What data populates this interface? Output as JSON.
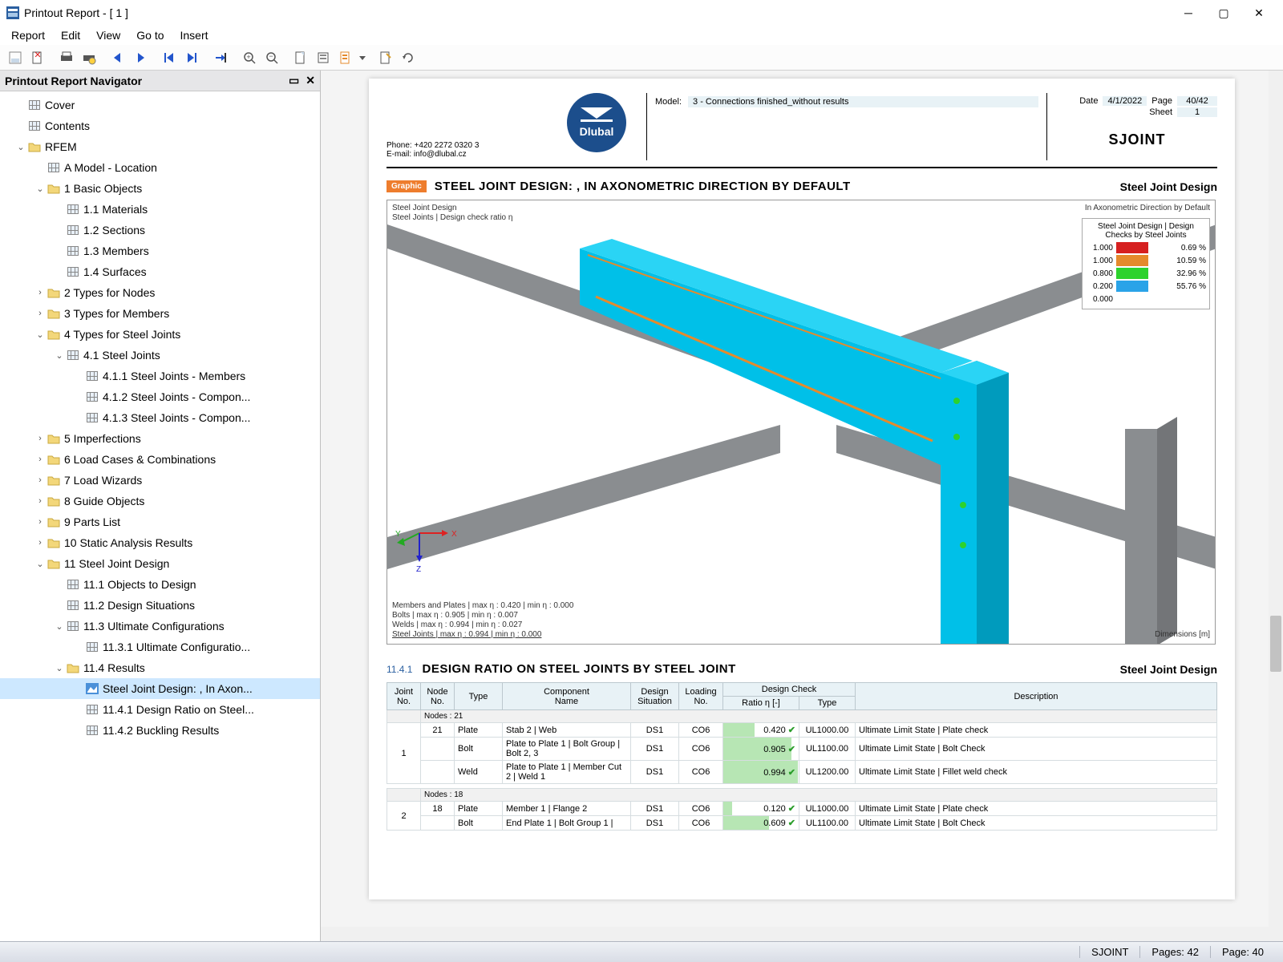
{
  "window": {
    "title": "Printout Report - [ 1 ]"
  },
  "menu": [
    "Report",
    "Edit",
    "View",
    "Go to",
    "Insert"
  ],
  "navigator": {
    "title": "Printout Report Navigator"
  },
  "tree": [
    {
      "d": 0,
      "t": null,
      "i": "grid",
      "l": "Cover"
    },
    {
      "d": 0,
      "t": null,
      "i": "grid",
      "l": "Contents"
    },
    {
      "d": 0,
      "t": "open",
      "i": "folder",
      "l": "RFEM"
    },
    {
      "d": 1,
      "t": null,
      "i": "grid",
      "l": "A Model - Location"
    },
    {
      "d": 1,
      "t": "open",
      "i": "folder",
      "l": "1 Basic Objects"
    },
    {
      "d": 2,
      "t": null,
      "i": "grid",
      "l": "1.1 Materials"
    },
    {
      "d": 2,
      "t": null,
      "i": "grid",
      "l": "1.2 Sections"
    },
    {
      "d": 2,
      "t": null,
      "i": "grid",
      "l": "1.3 Members"
    },
    {
      "d": 2,
      "t": null,
      "i": "grid",
      "l": "1.4 Surfaces"
    },
    {
      "d": 1,
      "t": "closed",
      "i": "folder",
      "l": "2 Types for Nodes"
    },
    {
      "d": 1,
      "t": "closed",
      "i": "folder",
      "l": "3 Types for Members"
    },
    {
      "d": 1,
      "t": "open",
      "i": "folder",
      "l": "4 Types for Steel Joints"
    },
    {
      "d": 2,
      "t": "open",
      "i": "grid",
      "l": "4.1 Steel Joints"
    },
    {
      "d": 3,
      "t": null,
      "i": "grid",
      "l": "4.1.1 Steel Joints - Members"
    },
    {
      "d": 3,
      "t": null,
      "i": "grid",
      "l": "4.1.2 Steel Joints - Compon..."
    },
    {
      "d": 3,
      "t": null,
      "i": "grid",
      "l": "4.1.3 Steel Joints - Compon..."
    },
    {
      "d": 1,
      "t": "closed",
      "i": "folder",
      "l": "5 Imperfections"
    },
    {
      "d": 1,
      "t": "closed",
      "i": "folder",
      "l": "6 Load Cases & Combinations"
    },
    {
      "d": 1,
      "t": "closed",
      "i": "folder",
      "l": "7 Load Wizards"
    },
    {
      "d": 1,
      "t": "closed",
      "i": "folder",
      "l": "8 Guide Objects"
    },
    {
      "d": 1,
      "t": "closed",
      "i": "folder",
      "l": "9 Parts List"
    },
    {
      "d": 1,
      "t": "closed",
      "i": "folder",
      "l": "10 Static Analysis Results"
    },
    {
      "d": 1,
      "t": "open",
      "i": "folder",
      "l": "11 Steel Joint Design"
    },
    {
      "d": 2,
      "t": null,
      "i": "grid",
      "l": "11.1 Objects to Design"
    },
    {
      "d": 2,
      "t": null,
      "i": "grid",
      "l": "11.2 Design Situations"
    },
    {
      "d": 2,
      "t": "open",
      "i": "grid",
      "l": "11.3 Ultimate Configurations"
    },
    {
      "d": 3,
      "t": null,
      "i": "grid",
      "l": "11.3.1 Ultimate Configuratio..."
    },
    {
      "d": 2,
      "t": "open",
      "i": "folder",
      "l": "11.4 Results"
    },
    {
      "d": 3,
      "t": null,
      "i": "img",
      "l": "Steel Joint Design: , In Axon...",
      "sel": true
    },
    {
      "d": 3,
      "t": null,
      "i": "grid",
      "l": "11.4.1 Design Ratio on Steel..."
    },
    {
      "d": 3,
      "t": null,
      "i": "grid",
      "l": "11.4.2 Buckling Results"
    }
  ],
  "header": {
    "phone": "Phone: +420 2272 0320 3",
    "email": "E-mail: info@dlubal.cz",
    "logo": "Dlubal",
    "model_label": "Model:",
    "model_value": "3 - Connections finished_without results",
    "date_label": "Date",
    "date_value": "4/1/2022",
    "page_label": "Page",
    "page_value": "40/42",
    "sheet_label": "Sheet",
    "sheet_value": "1",
    "project": "SJOINT"
  },
  "section1": {
    "badge": "Graphic",
    "title": "STEEL JOINT DESIGN: , IN AXONOMETRIC DIRECTION BY DEFAULT",
    "right": "Steel Joint Design",
    "g_top1": "Steel Joint Design",
    "g_top2": "Steel Joints | Design check ratio η",
    "g_topright": "In Axonometric Direction by Default",
    "legend_title": "Steel Joint Design | Design Checks by Steel Joints",
    "legend": [
      {
        "tick": "1.000",
        "color": "#d62020",
        "pct": "0.69 %"
      },
      {
        "tick": "1.000",
        "color": "#e58a2c",
        "pct": "10.59 %"
      },
      {
        "tick": "0.800",
        "color": "#2dd22d",
        "pct": "32.96 %"
      },
      {
        "tick": "0.200",
        "color": "#2aa3e8",
        "pct": "55.76 %"
      },
      {
        "tick": "0.000",
        "color": "",
        "pct": ""
      }
    ],
    "g_bot1": "Members and Plates | max η : 0.420 | min η : 0.000",
    "g_bot2": "Bolts | max η : 0.905 | min η : 0.007",
    "g_bot3": "Welds | max η : 0.994 | min η : 0.027",
    "g_bot4": "Steel Joints | max η : 0.994 | min η : 0.000",
    "g_dim": "Dimensions [m]"
  },
  "section2": {
    "num": "11.4.1",
    "title": "DESIGN RATIO ON STEEL JOINTS BY STEEL JOINT",
    "right": "Steel Joint Design",
    "headers": {
      "joint": "Joint\nNo.",
      "node": "Node\nNo.",
      "type": "Type",
      "comp": "Component\nName",
      "ds": "Design\nSituation",
      "load": "Loading\nNo.",
      "dc": "Design Check",
      "ratio": "Ratio η [-]",
      "dctype": "Type",
      "desc": "Description"
    },
    "groups": [
      {
        "label": "Nodes : 21",
        "joint": "1",
        "rows": [
          {
            "node": "21",
            "type": "Plate",
            "comp": "Stab 2 | Web",
            "ds": "DS1",
            "lc": "CO6",
            "ratio": 0.42,
            "dct": "UL1000.00",
            "desc": "Ultimate Limit State | Plate check"
          },
          {
            "node": "",
            "type": "Bolt",
            "comp": "Plate to Plate 1 | Bolt Group | Bolt 2, 3",
            "ds": "DS1",
            "lc": "CO6",
            "ratio": 0.905,
            "dct": "UL1100.00",
            "desc": "Ultimate Limit State | Bolt Check"
          },
          {
            "node": "",
            "type": "Weld",
            "comp": "Plate to Plate 1 | Member Cut 2 | Weld 1",
            "ds": "DS1",
            "lc": "CO6",
            "ratio": 0.994,
            "dct": "UL1200.00",
            "desc": "Ultimate Limit State | Fillet weld check"
          }
        ]
      },
      {
        "label": "Nodes : 18",
        "joint": "2",
        "rows": [
          {
            "node": "18",
            "type": "Plate",
            "comp": "Member 1 | Flange 2",
            "ds": "DS1",
            "lc": "CO6",
            "ratio": 0.12,
            "dct": "UL1000.00",
            "desc": "Ultimate Limit State | Plate check"
          },
          {
            "node": "",
            "type": "Bolt",
            "comp": "End Plate 1 | Bolt Group 1 |",
            "ds": "DS1",
            "lc": "CO6",
            "ratio": 0.609,
            "dct": "UL1100.00",
            "desc": "Ultimate Limit State | Bolt Check"
          }
        ]
      }
    ]
  },
  "status": {
    "sjoint": "SJOINT",
    "pages": "Pages: 42",
    "page": "Page: 40"
  },
  "colors": {
    "beam": "#00c0e8",
    "beam_dark": "#009bbd",
    "grey": "#8a8d90"
  }
}
